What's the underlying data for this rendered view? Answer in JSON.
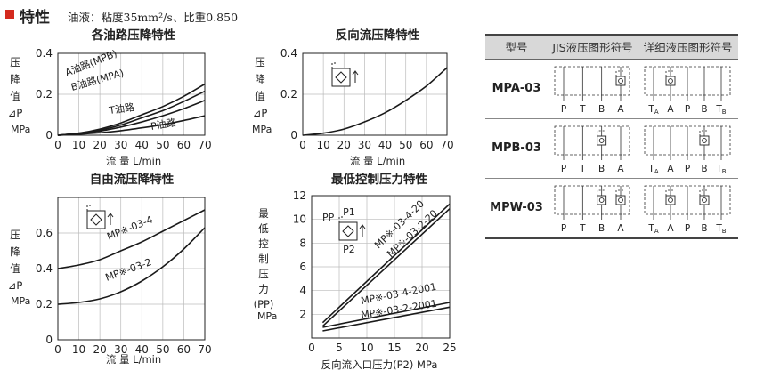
{
  "header": {
    "title": "特性",
    "description": "油液：粘度35mm²/s、比重0.850"
  },
  "colors": {
    "accent": "#d42a1e",
    "table_header": "#d8d8d8",
    "curve": "#1a1a1a"
  },
  "icons": [
    "check-valve-symbol-icon",
    "flow-arrow-icon"
  ],
  "chart_data": [
    {
      "type": "line",
      "title": "各油路压降特性",
      "ylabel": "压降值⊿P",
      "yunit": "MPa",
      "xlabel": "流 量 L/min",
      "xlim": [
        0,
        70
      ],
      "ylim": [
        0,
        0.4
      ],
      "xticks": [
        "0",
        "10",
        "20",
        "30",
        "40",
        "50",
        "60",
        "70"
      ],
      "yticks": [
        "0.2",
        "0.4"
      ],
      "series": [
        {
          "name": "A油路(MPB)",
          "x": [
            0,
            10,
            20,
            30,
            40,
            50,
            60,
            70
          ],
          "y": [
            0,
            0.01,
            0.03,
            0.06,
            0.1,
            0.14,
            0.19,
            0.25
          ]
        },
        {
          "name": "B油路(MPA)",
          "x": [
            0,
            10,
            20,
            30,
            40,
            50,
            60,
            70
          ],
          "y": [
            0,
            0.01,
            0.025,
            0.05,
            0.085,
            0.12,
            0.165,
            0.215
          ]
        },
        {
          "name": "T油路",
          "x": [
            0,
            10,
            20,
            30,
            40,
            50,
            60,
            70
          ],
          "y": [
            0,
            0.008,
            0.02,
            0.04,
            0.065,
            0.095,
            0.13,
            0.17
          ]
        },
        {
          "name": "P油路",
          "x": [
            0,
            10,
            20,
            30,
            40,
            50,
            60,
            70
          ],
          "y": [
            0,
            0.005,
            0.012,
            0.022,
            0.036,
            0.052,
            0.072,
            0.095
          ]
        }
      ]
    },
    {
      "type": "line",
      "title": "反向流压降特性",
      "ylabel": "压降值⊿P",
      "yunit": "MPa",
      "xlabel": "流 量 L/min",
      "xlim": [
        0,
        70
      ],
      "ylim": [
        0,
        0.4
      ],
      "xticks": [
        "0",
        "10",
        "20",
        "30",
        "40",
        "50",
        "60",
        "70"
      ],
      "yticks": [
        "0.2",
        "0.4"
      ],
      "series": [
        {
          "x": [
            0,
            10,
            20,
            30,
            40,
            50,
            60,
            70
          ],
          "y": [
            0,
            0.01,
            0.03,
            0.065,
            0.11,
            0.17,
            0.24,
            0.33
          ]
        }
      ]
    },
    {
      "type": "line",
      "title": "自由流压降特性",
      "ylabel": "压降值⊿P",
      "yunit": "MPa",
      "xlabel": "流 量 L/min",
      "xlim": [
        0,
        70
      ],
      "ylim": [
        0,
        0.8
      ],
      "xticks": [
        "0",
        "10",
        "20",
        "30",
        "40",
        "50",
        "60",
        "70"
      ],
      "yticks": [
        "0.2",
        "0.4",
        "0.6"
      ],
      "series": [
        {
          "name": "MP※-03-4",
          "x": [
            0,
            10,
            20,
            30,
            40,
            50,
            60,
            70
          ],
          "y": [
            0.4,
            0.42,
            0.45,
            0.5,
            0.55,
            0.61,
            0.67,
            0.73
          ]
        },
        {
          "name": "MP※-03-2",
          "x": [
            0,
            10,
            20,
            30,
            40,
            50,
            60,
            70
          ],
          "y": [
            0.2,
            0.21,
            0.23,
            0.27,
            0.33,
            0.41,
            0.51,
            0.63
          ]
        }
      ]
    },
    {
      "type": "line",
      "title": "最低控制压力特性",
      "ylabel": "最低控制压力(PP)",
      "yunit": "MPa",
      "xlabel": "反向流入口压力(P2) MPa",
      "xlim": [
        0,
        25
      ],
      "ylim": [
        0,
        12
      ],
      "xticks": [
        "0",
        "5",
        "10",
        "15",
        "20",
        "25"
      ],
      "yticks": [
        "2",
        "4",
        "6",
        "8",
        "10",
        "12"
      ],
      "symbol_labels": [
        "PP",
        "P1",
        "P2"
      ],
      "series": [
        {
          "name": "MP※-03-4-20",
          "x": [
            2,
            25
          ],
          "y": [
            1.3,
            11.3
          ]
        },
        {
          "name": "MP※-03-2-20",
          "x": [
            2,
            25
          ],
          "y": [
            1.0,
            10.9
          ]
        },
        {
          "name": "MP※-03-4-2001",
          "x": [
            2,
            25
          ],
          "y": [
            0.9,
            3.0
          ]
        },
        {
          "name": "MP※-03-2-2001",
          "x": [
            2,
            25
          ],
          "y": [
            0.6,
            2.6
          ]
        }
      ]
    }
  ],
  "spec_table": {
    "headers": [
      "型号",
      "JIS液压图形符号",
      "详细液压图形符号"
    ],
    "rows": [
      {
        "model": "MPA-03",
        "jis_ports": [
          "P",
          "T",
          "B",
          "A"
        ],
        "detail_ports": [
          "TA",
          "A",
          "P",
          "B",
          "TB"
        ]
      },
      {
        "model": "MPB-03",
        "jis_ports": [
          "P",
          "T",
          "B",
          "A"
        ],
        "detail_ports": [
          "TA",
          "A",
          "P",
          "B",
          "TB"
        ]
      },
      {
        "model": "MPW-03",
        "jis_ports": [
          "P",
          "T",
          "B",
          "A"
        ],
        "detail_ports": [
          "TA",
          "A",
          "P",
          "B",
          "TB"
        ]
      }
    ]
  }
}
